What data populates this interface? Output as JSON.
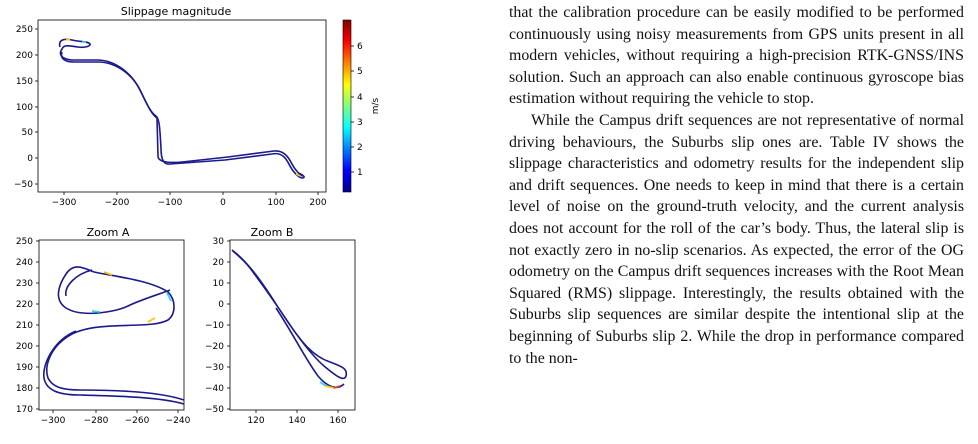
{
  "figure": {
    "panels": [
      {
        "title": "Slippage magnitude",
        "xticks": [
          "−300",
          "−200",
          "−100",
          "0",
          "100",
          "200"
        ],
        "yticks": [
          "250",
          "200",
          "150",
          "100",
          "50",
          "0",
          "−50"
        ],
        "colorbar": {
          "label": "m/s",
          "ticks": [
            "6",
            "5",
            "4",
            "3",
            "2",
            "1"
          ]
        }
      },
      {
        "title": "Zoom A",
        "xticks": [
          "−300",
          "−280",
          "−260",
          "−240"
        ],
        "yticks": [
          "250",
          "240",
          "230",
          "220",
          "210",
          "200",
          "190",
          "180",
          "170"
        ]
      },
      {
        "title": "Zoom B",
        "xticks": [
          "120",
          "140",
          "160"
        ],
        "yticks": [
          "30",
          "20",
          "10",
          "0",
          "−10",
          "−20",
          "−30",
          "−40",
          "−50"
        ]
      }
    ],
    "colors": {
      "trajectory": "#1a1a8c",
      "slip_high": "#f2c40f",
      "slip_mid": "#3fd0e0",
      "slip_red": "#e8401c"
    }
  },
  "text": {
    "paragraphs": [
      "that the calibration procedure can be easily modified to be performed continuously using noisy measurements from GPS units present in all modern vehicles, without requiring a high-precision RTK-GNSS/INS solution. Such an approach can also enable continuous gyroscope bias estimation without requiring the vehicle to stop.",
      "While the Campus drift sequences are not representative of normal driving behaviours, the Suburbs slip ones are. Table IV shows the slippage characteristics and odometry results for the independent slip and drift sequences. One needs to keep in mind that there is a certain level of noise on the ground-truth velocity, and the current analysis does not account for the roll of the car’s body. Thus, the lateral slip is not exactly zero in no-slip scenarios. As expected, the error of the OG odometry on the Campus drift sequences increases with the Root Mean Squared (RMS) slippage. Interestingly, the results obtained with the Suburbs slip sequences are similar despite the intentional slip at the beginning of Suburbs slip 2. While the drop in performance compared to the non-"
    ]
  }
}
